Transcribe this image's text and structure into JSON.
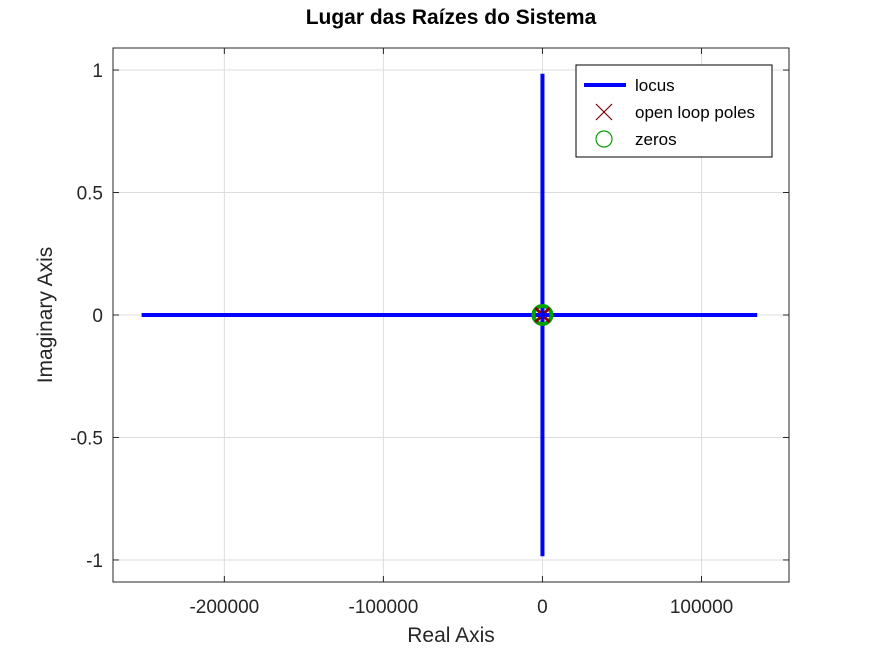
{
  "chart_data": {
    "type": "scatter",
    "title": "Lugar das Raízes do Sistema",
    "xlabel": "Real Axis",
    "ylabel": "Imaginary Axis",
    "xlim": [
      -270000,
      155000
    ],
    "ylim": [
      -1.09,
      1.09
    ],
    "grid": true,
    "x_ticks": [
      -200000,
      -100000,
      0,
      100000
    ],
    "x_tick_labels": [
      "-200000",
      "-100000",
      "0",
      "100000"
    ],
    "y_ticks": [
      -1,
      -0.5,
      0,
      0.5,
      1
    ],
    "y_tick_labels": [
      "-1",
      "-0.5",
      "0",
      "0.5",
      "1"
    ],
    "legend_position": "top-right",
    "series": [
      {
        "name": "locus",
        "kind": "line",
        "color": "#0000ff",
        "segments": [
          [
            [
              -252000,
              0
            ],
            [
              135000,
              0
            ]
          ],
          [
            [
              0,
              -0.985
            ],
            [
              0,
              0.985
            ]
          ]
        ]
      },
      {
        "name": "open loop poles",
        "kind": "marker-x",
        "color": "#8b0000",
        "points": [
          [
            0,
            0
          ]
        ]
      },
      {
        "name": "zeros",
        "kind": "marker-o",
        "color": "#00a000",
        "points": [
          [
            0,
            0
          ]
        ]
      }
    ],
    "legend": [
      "locus",
      "open loop poles",
      "zeros"
    ]
  }
}
